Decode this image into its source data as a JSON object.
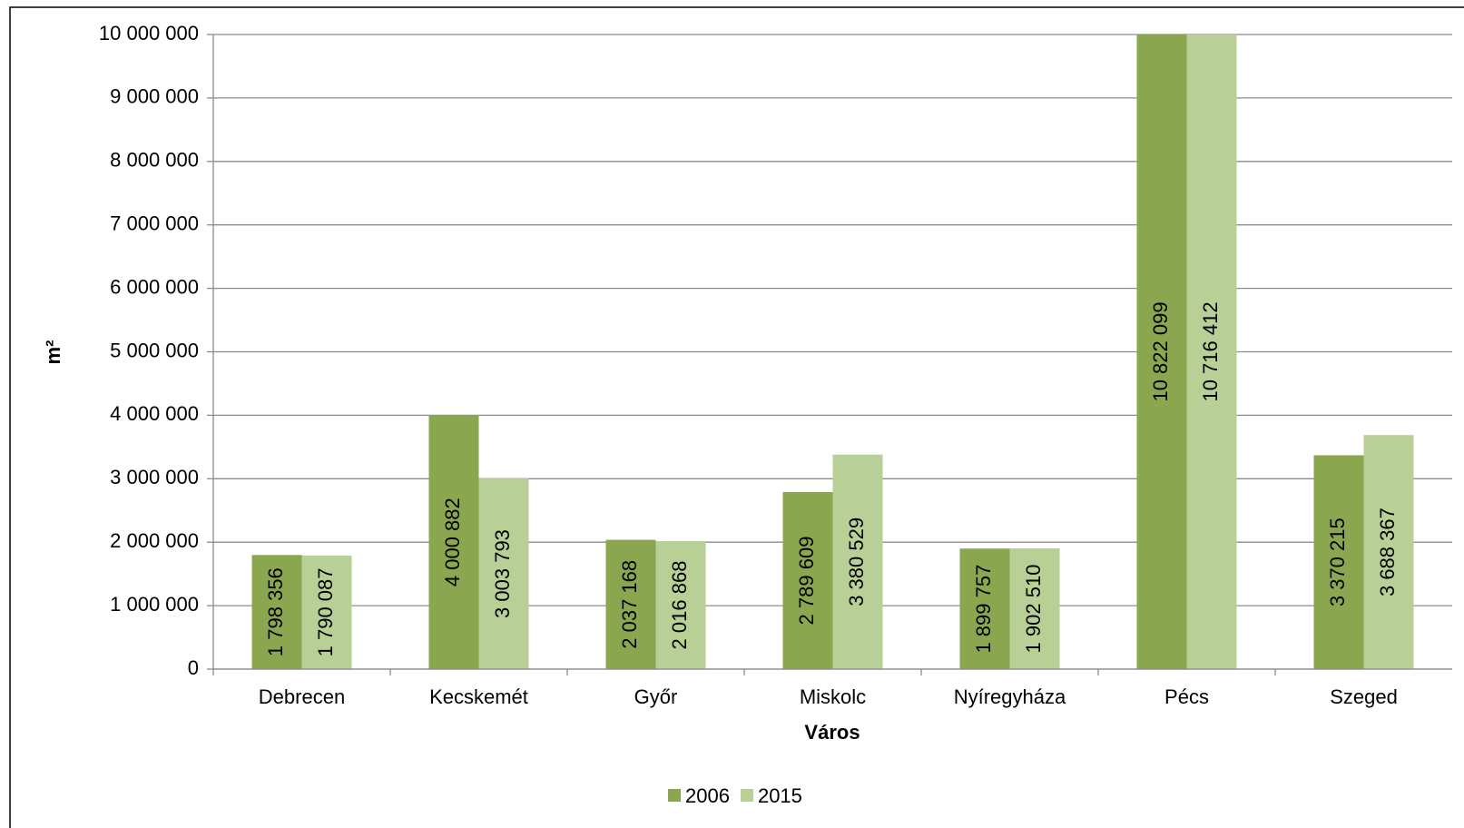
{
  "chart_data": {
    "type": "bar",
    "x_label": "Város",
    "y_label": "m²",
    "categories": [
      "Debrecen",
      "Kecskemét",
      "Győr",
      "Miskolc",
      "Nyíregyháza",
      "Pécs",
      "Szeged"
    ],
    "series": [
      {
        "name": "2006",
        "color": "#8aa64f",
        "values": [
          1798356,
          4000882,
          2037168,
          2789609,
          1899757,
          10822099,
          3370215
        ],
        "value_labels": [
          "1 798 356",
          "4 000 882",
          "2 037 168",
          "2 789 609",
          "1 899 757",
          "10 822 099",
          "3 370 215"
        ]
      },
      {
        "name": "2015",
        "color": "#b8cf96",
        "values": [
          1790087,
          3003793,
          2016868,
          3380529,
          1902510,
          10716412,
          3688367
        ],
        "value_labels": [
          "1 790 087",
          "3 003 793",
          "2 016 868",
          "3 380 529",
          "1 902 510",
          "10 716 412",
          "3 688 367"
        ]
      }
    ],
    "ylim": [
      0,
      10000000
    ],
    "yticks": [
      {
        "value": 0,
        "label": "0"
      },
      {
        "value": 1000000,
        "label": "1 000 000"
      },
      {
        "value": 2000000,
        "label": "2 000 000"
      },
      {
        "value": 3000000,
        "label": "3 000 000"
      },
      {
        "value": 4000000,
        "label": "4 000 000"
      },
      {
        "value": 5000000,
        "label": "5 000 000"
      },
      {
        "value": 6000000,
        "label": "6 000 000"
      },
      {
        "value": 7000000,
        "label": "7 000 000"
      },
      {
        "value": 8000000,
        "label": "8 000 000"
      },
      {
        "value": 9000000,
        "label": "9 000 000"
      },
      {
        "value": 10000000,
        "label": "10 000 000"
      }
    ],
    "grid": true,
    "legend": "bottom"
  }
}
